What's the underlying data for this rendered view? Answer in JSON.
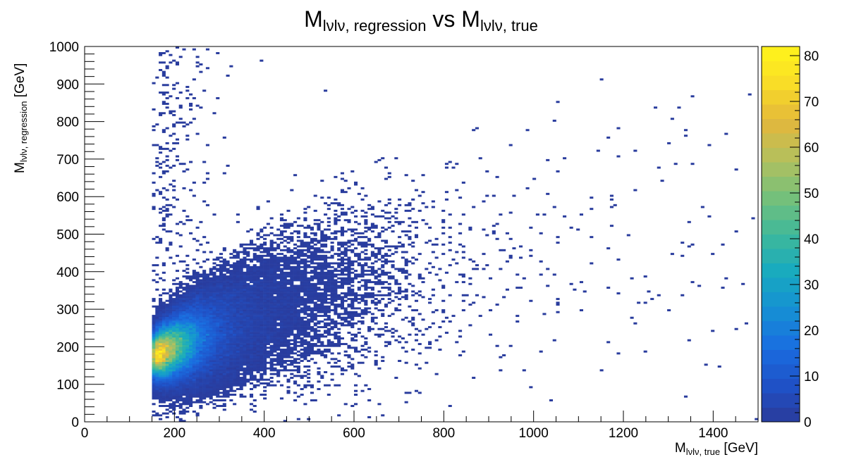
{
  "chart_data": {
    "type": "heatmap",
    "title": {
      "main1": "M",
      "sub1": "lνlν, regression",
      "mid": " vs M",
      "sub2": "lνlν, true"
    },
    "xlabel": {
      "main": "M",
      "sub": "lνlν, true",
      "suffix": " [GeV]"
    },
    "ylabel": {
      "main": "M",
      "sub": "lνlν, regression",
      "suffix": " [GeV]"
    },
    "xlim": [
      0,
      1500
    ],
    "ylim": [
      0,
      1000
    ],
    "x_ticks": [
      "0",
      "200",
      "400",
      "600",
      "800",
      "1000",
      "1200",
      "1400"
    ],
    "y_ticks": [
      "0",
      "100",
      "200",
      "300",
      "400",
      "500",
      "600",
      "700",
      "800",
      "900",
      "1000"
    ],
    "z_ticks": [
      "0",
      "10",
      "20",
      "30",
      "40",
      "50",
      "60",
      "70",
      "80"
    ],
    "zlim": [
      0,
      82
    ],
    "bins": {
      "x_width": 7.5,
      "y_width": 5
    },
    "colormap": [
      "#2a3a9a",
      "#1f52c8",
      "#1a6ee0",
      "#1590d4",
      "#18aabf",
      "#3fb99a",
      "#76c07a",
      "#b3c05d",
      "#e3b73c",
      "#f9dc27",
      "#fff51a"
    ],
    "legend": "colorbar-right",
    "grid": false,
    "peak": {
      "x": 190,
      "y": 230,
      "count": 82
    },
    "description": "Dense core around (190, 230) GeV elongated toward upper-right (~(450, 400)); sparse tail extending to x≈1480, y up to 1000."
  }
}
